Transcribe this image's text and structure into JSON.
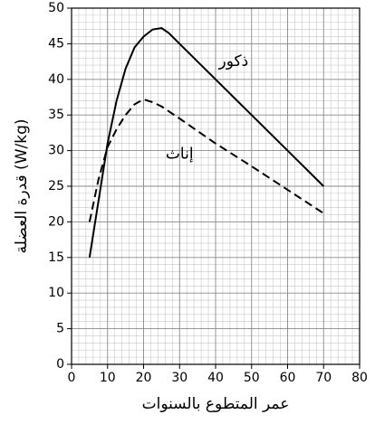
{
  "chart_data": {
    "type": "line",
    "xlabel": "عمر المتطوع بالسنوات",
    "ylabel": "قدرة العضلة (W/kg)",
    "xlim": [
      0,
      80
    ],
    "xticks": [
      0,
      10,
      20,
      30,
      40,
      50,
      60,
      70,
      80
    ],
    "ylim": [
      0,
      50
    ],
    "yticks": [
      0,
      5,
      10,
      15,
      20,
      25,
      30,
      35,
      40,
      45,
      50
    ],
    "grid": true,
    "series": [
      {
        "name": "ذكور",
        "color": "#000000",
        "dash": false,
        "x": [
          5,
          7.5,
          10,
          12.5,
          15,
          17.5,
          20,
          22.5,
          25,
          27,
          30,
          40,
          50,
          60,
          70
        ],
        "values": [
          15,
          23,
          31,
          37,
          41.5,
          44.5,
          46,
          47,
          47.2,
          46.5,
          45,
          40,
          35,
          30,
          25
        ]
      },
      {
        "name": "إناث",
        "color": "#000000",
        "dash": true,
        "x": [
          5,
          7.5,
          10,
          12.5,
          15,
          17.5,
          20,
          22.5,
          25,
          30,
          40,
          50,
          60,
          70
        ],
        "values": [
          20,
          26,
          30.5,
          33,
          35,
          36.5,
          37.2,
          36.8,
          36.2,
          34.5,
          31,
          27.8,
          24.5,
          21.2
        ]
      }
    ],
    "annotations": [
      {
        "text": "ذكور",
        "x": 45,
        "y": 42.5
      },
      {
        "text": "إناث",
        "x": 30,
        "y": 29.5
      }
    ]
  }
}
